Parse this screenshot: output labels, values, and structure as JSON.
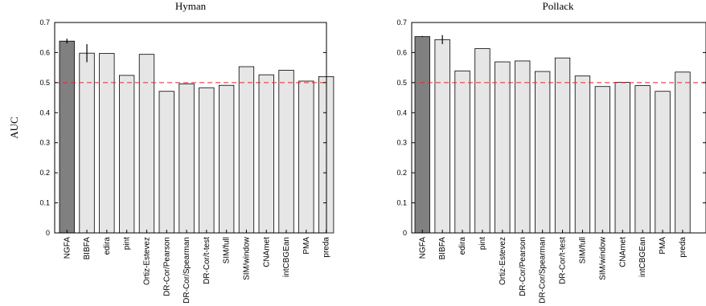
{
  "chart_data": [
    {
      "type": "bar",
      "title": "Hyman",
      "ylabel": "AUC",
      "xlabel": "",
      "ylim": [
        0,
        0.7
      ],
      "yticks": [
        "0",
        "0.1",
        "0.2",
        "0.3",
        "0.4",
        "0.5",
        "0.6",
        "0.7"
      ],
      "reference_line": {
        "y": 0.5,
        "style": "dashed",
        "color": "#e8262b"
      },
      "categories": [
        "NGFA",
        "BIBFA",
        "edira",
        "pint",
        "Ortiz-Estevez",
        "DR-Cor/Pearson",
        "DR-Cor/Spearman",
        "DR-Cor/t-test",
        "SIM/full",
        "SIM/window",
        "CNAmet",
        "intCBGEan",
        "PMA",
        "preda"
      ],
      "values": [
        0.638,
        0.598,
        0.597,
        0.524,
        0.594,
        0.471,
        0.496,
        0.483,
        0.491,
        0.553,
        0.526,
        0.541,
        0.505,
        0.52
      ],
      "errors": [
        0.008,
        0.03,
        0,
        0,
        0,
        0,
        0,
        0,
        0,
        0,
        0,
        0,
        0,
        0
      ],
      "highlight_index": 0,
      "colors": {
        "highlight": "#808080",
        "bar": "#e6e6e6",
        "edge": "#000000"
      }
    },
    {
      "type": "bar",
      "title": "Pollack",
      "ylabel": "",
      "xlabel": "",
      "ylim": [
        0,
        0.7
      ],
      "yticks": [
        "0",
        "0.1",
        "0.2",
        "0.3",
        "0.4",
        "0.5",
        "0.6",
        "0.7"
      ],
      "reference_line": {
        "y": 0.5,
        "style": "dashed",
        "color": "#e8262b"
      },
      "categories": [
        "NGFA",
        "BIBFA",
        "edira",
        "pint",
        "Ortiz-Estevez",
        "DR-Cor/Pearson",
        "DR-Cor/Spearman",
        "DR-Cor/t-test",
        "SIM/full",
        "SIM/window",
        "CNAmet",
        "intCBGEan",
        "PMA",
        "preda"
      ],
      "values": [
        0.653,
        0.643,
        0.539,
        0.613,
        0.569,
        0.572,
        0.537,
        0.582,
        0.522,
        0.487,
        0.501,
        0.49,
        0.471,
        0.535
      ],
      "errors": [
        0.002,
        0.015,
        0,
        0,
        0,
        0,
        0,
        0,
        0,
        0,
        0,
        0,
        0,
        0
      ],
      "highlight_index": 0,
      "colors": {
        "highlight": "#808080",
        "bar": "#e6e6e6",
        "edge": "#000000"
      }
    }
  ]
}
